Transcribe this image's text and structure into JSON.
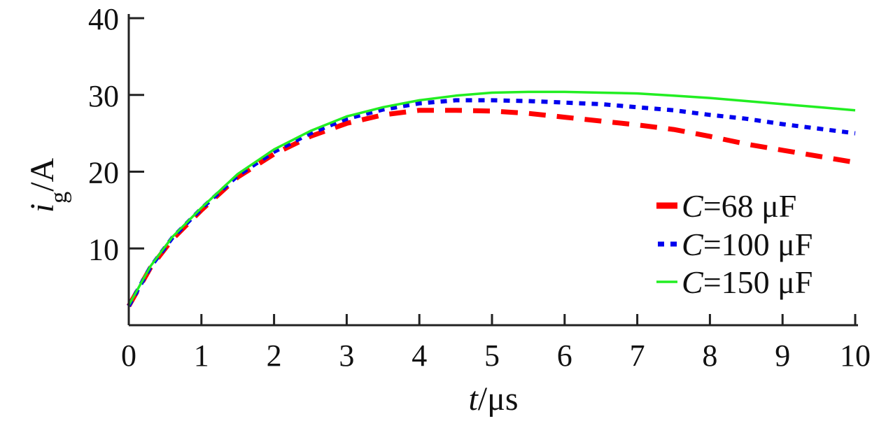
{
  "chart_data": {
    "type": "line",
    "title": "",
    "xlabel": {
      "var": "t",
      "unit": "/μs"
    },
    "ylabel": {
      "var": "i",
      "sub": "g",
      "unit": "/A"
    },
    "xlim": [
      0,
      10
    ],
    "ylim": [
      0,
      40
    ],
    "xticks": [
      "0",
      "1",
      "2",
      "3",
      "4",
      "5",
      "6",
      "7",
      "8",
      "9",
      "10"
    ],
    "yticks": [
      "10",
      "20",
      "30",
      "40"
    ],
    "ytick_values": [
      10,
      20,
      30,
      40
    ],
    "grid": false,
    "legend_position": "right",
    "series": [
      {
        "name": "C=68 μF",
        "legend": {
          "var": "C",
          "rest": "=68 μF"
        },
        "color": "#ff0000",
        "style": "dashed",
        "x": [
          0.0,
          0.3,
          0.6,
          1.0,
          1.5,
          2.0,
          2.5,
          3.0,
          3.5,
          4.0,
          4.5,
          5.0,
          5.5,
          6.0,
          6.5,
          7.0,
          7.5,
          8.0,
          8.5,
          9.0,
          9.5,
          10.0
        ],
        "y": [
          2.5,
          7.5,
          11.2,
          15.0,
          19.3,
          22.3,
          24.6,
          26.3,
          27.4,
          28.0,
          28.0,
          27.9,
          27.6,
          27.1,
          26.6,
          26.1,
          25.5,
          24.6,
          23.6,
          22.8,
          22.0,
          21.2
        ]
      },
      {
        "name": "C=100 μF",
        "legend": {
          "var": "C",
          "rest": "=100 μF"
        },
        "color": "#0000ee",
        "style": "dotted",
        "x": [
          0.0,
          0.3,
          0.6,
          1.0,
          1.5,
          2.0,
          2.5,
          3.0,
          3.5,
          4.0,
          4.5,
          5.0,
          5.5,
          6.0,
          6.5,
          7.0,
          7.5,
          8.0,
          8.5,
          9.0,
          9.5,
          10.0
        ],
        "y": [
          2.5,
          7.6,
          11.4,
          15.2,
          19.5,
          22.6,
          25.0,
          26.9,
          28.1,
          28.9,
          29.3,
          29.3,
          29.2,
          29.0,
          28.8,
          28.4,
          28.0,
          27.4,
          26.9,
          26.2,
          25.6,
          25.0
        ]
      },
      {
        "name": "C=150 μF",
        "legend": {
          "var": "C",
          "rest": "=150 μF"
        },
        "color": "#22ee22",
        "style": "solid",
        "x": [
          0.0,
          0.3,
          0.6,
          1.0,
          1.5,
          2.0,
          2.5,
          3.0,
          3.5,
          4.0,
          4.5,
          5.0,
          5.5,
          6.0,
          6.5,
          7.0,
          7.5,
          8.0,
          8.5,
          9.0,
          9.5,
          10.0
        ],
        "y": [
          2.6,
          7.7,
          11.5,
          15.3,
          19.7,
          22.9,
          25.3,
          27.2,
          28.4,
          29.3,
          29.9,
          30.3,
          30.4,
          30.4,
          30.3,
          30.2,
          29.9,
          29.6,
          29.2,
          28.8,
          28.4,
          28.0
        ]
      }
    ]
  }
}
